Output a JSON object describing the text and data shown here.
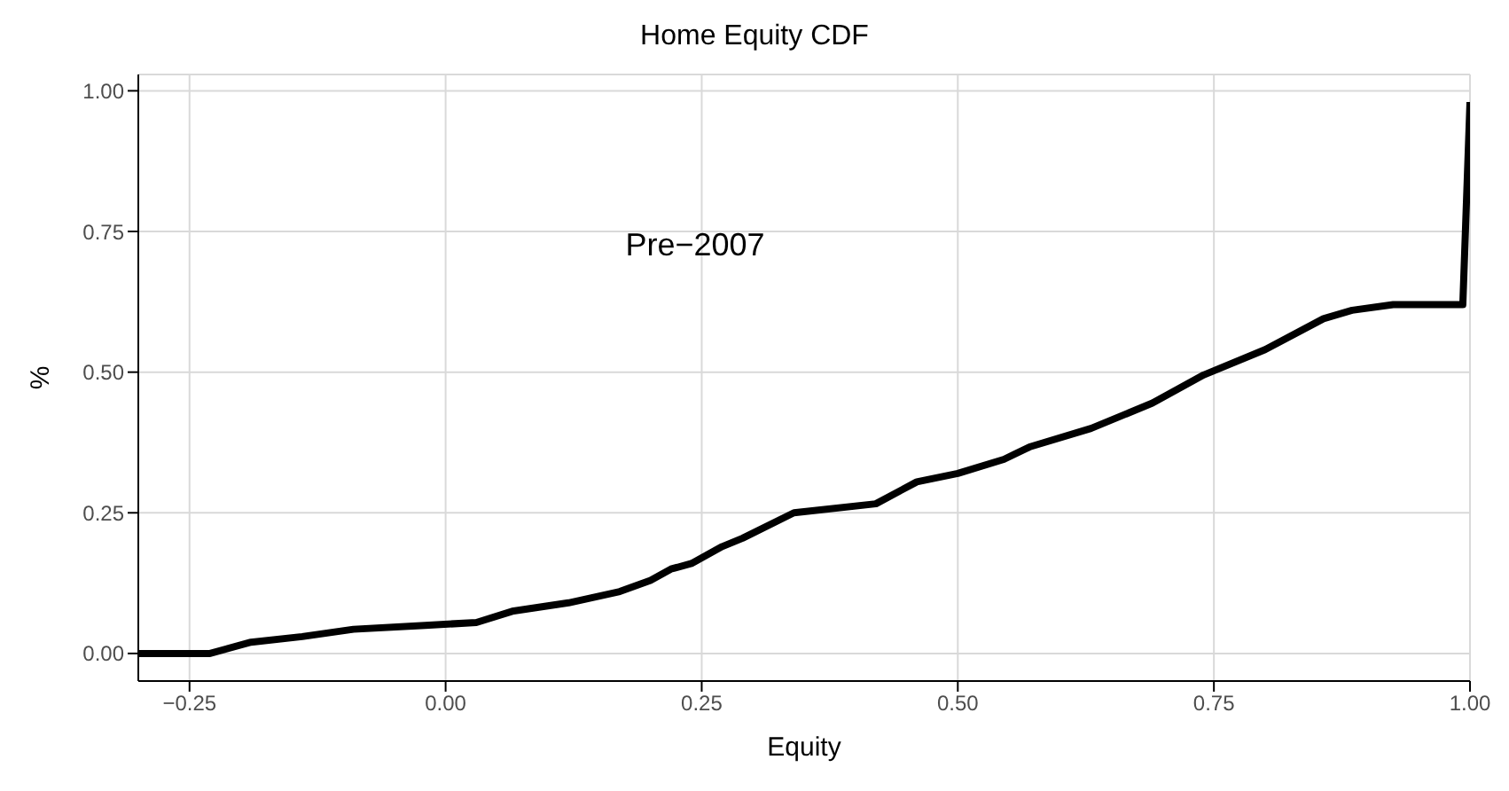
{
  "chart_data": {
    "type": "line",
    "title": "Home Equity CDF",
    "xlabel": "Equity",
    "ylabel": "%",
    "annotations": [
      "Pre−2007"
    ],
    "series": [
      {
        "color": "#000000",
        "x": [
          -0.3,
          -0.23,
          -0.19,
          -0.14,
          -0.09,
          -0.02,
          0.03,
          0.065,
          0.12,
          0.17,
          0.2,
          0.22,
          0.24,
          0.27,
          0.29,
          0.34,
          0.42,
          0.46,
          0.5,
          0.545,
          0.57,
          0.63,
          0.69,
          0.74,
          0.8,
          0.857,
          0.885,
          0.925,
          0.993,
          1.0
        ],
        "values": [
          0,
          0,
          0.02,
          0.03,
          0.043,
          0.05,
          0.055,
          0.075,
          0.09,
          0.11,
          0.13,
          0.15,
          0.16,
          0.19,
          0.205,
          0.25,
          0.266,
          0.305,
          0.32,
          0.345,
          0.367,
          0.4,
          0.445,
          0.495,
          0.54,
          0.595,
          0.61,
          0.62,
          0.62,
          0.98
        ]
      }
    ],
    "xlim": [
      -0.3,
      1.0
    ],
    "ylim": [
      -0.049,
      1.029
    ],
    "xticks": [
      {
        "value": -0.25,
        "label": "−0.25"
      },
      {
        "value": 0,
        "label": "0.00"
      },
      {
        "value": 0.25,
        "label": "0.25"
      },
      {
        "value": 0.5,
        "label": "0.50"
      },
      {
        "value": 0.75,
        "label": "0.75"
      },
      {
        "value": 1,
        "label": "1.00"
      }
    ],
    "yticks": [
      {
        "value": 0,
        "label": "0.00"
      },
      {
        "value": 0.25,
        "label": "0.25"
      },
      {
        "value": 0.5,
        "label": "0.50"
      },
      {
        "value": 0.75,
        "label": "0.75"
      },
      {
        "value": 1,
        "label": "1.00"
      }
    ],
    "grid": true,
    "marker": "none",
    "line_style": "solid"
  }
}
